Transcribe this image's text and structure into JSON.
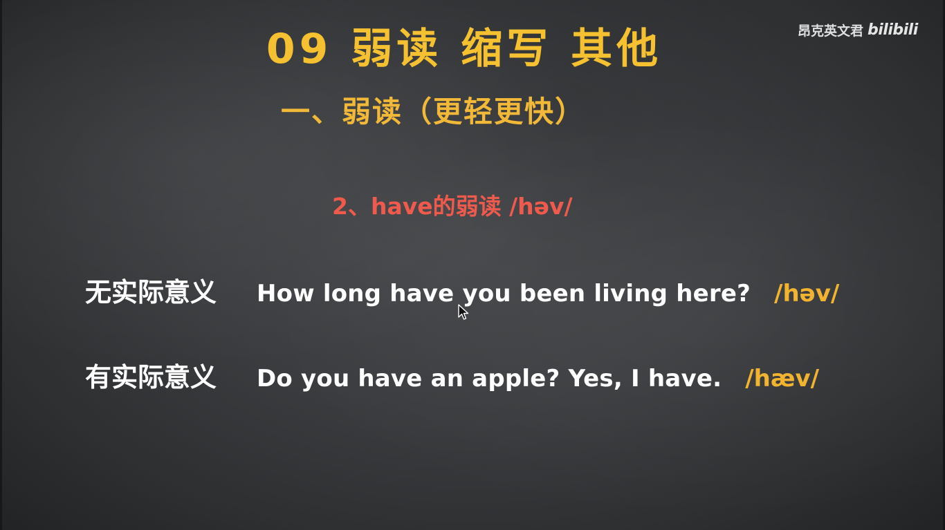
{
  "watermark": {
    "channel": "昂克英文君",
    "logo": "bilibili"
  },
  "slide": {
    "title": "09 弱读 缩写 其他",
    "subtitle": "一、弱读（更轻更快）",
    "section": "2、have的弱读 /həv/",
    "rows": [
      {
        "label": "无实际意义",
        "sentence": "How long have you been living here?",
        "ipa": "/həv/"
      },
      {
        "label": "有实际意义",
        "sentence": "Do you have an apple? Yes, I have.",
        "ipa": "/hæv/"
      }
    ]
  },
  "colors": {
    "title": "#f6c130",
    "section": "#ef5a4d",
    "body_text": "#ffffff",
    "ipa": "#f2b430",
    "board": "#3b3d40"
  },
  "icons": {
    "cursor": "mouse-pointer-icon"
  }
}
